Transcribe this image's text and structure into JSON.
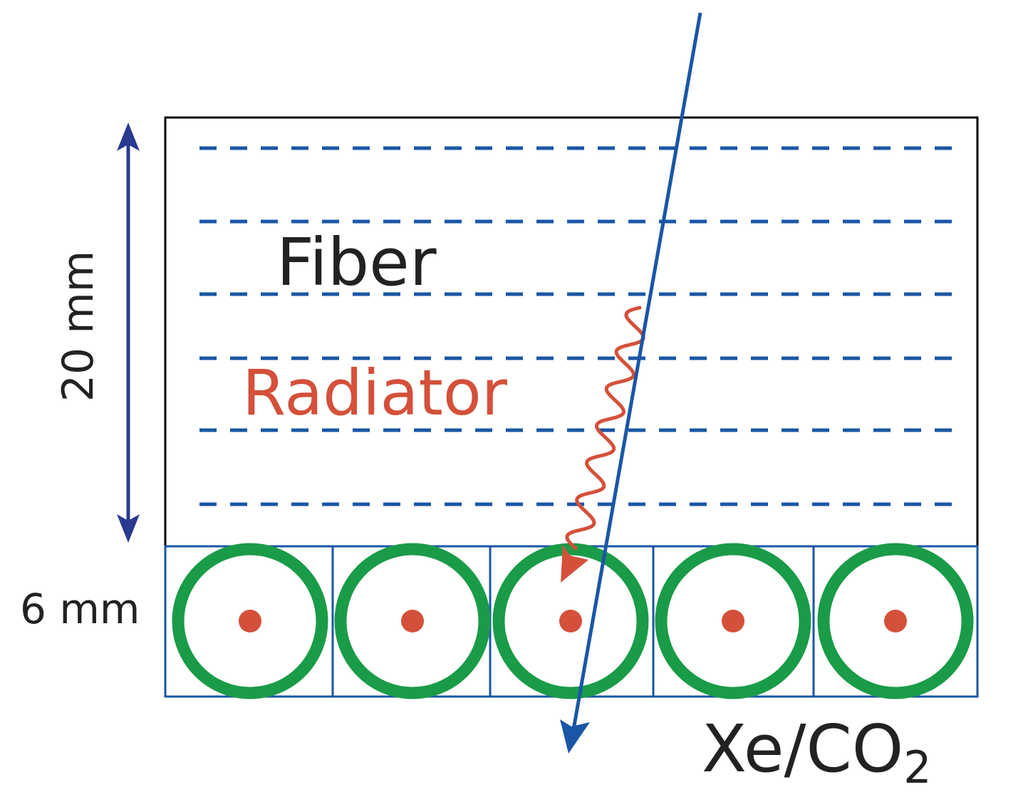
{
  "labels": {
    "fiber": "Fiber",
    "radiator": "Radiator",
    "height_radiator": "20 mm",
    "height_tubes": "6 mm",
    "gas_main": "Xe/CO",
    "gas_sub": "2"
  },
  "colors": {
    "outline": "#000000",
    "fiber_lines": "#1a56a6",
    "radiator_text": "#d4503a",
    "photon": "#d4503a",
    "dimension_arrow": "#2b3990",
    "tube_wall": "#1a9b48",
    "tube_grid": "#1a56a6",
    "anode_wire": "#d4503a",
    "particle_track": "#1a56a6",
    "text": "#222222"
  },
  "structure": {
    "fiber_layers": 6,
    "straw_tubes": 5
  }
}
